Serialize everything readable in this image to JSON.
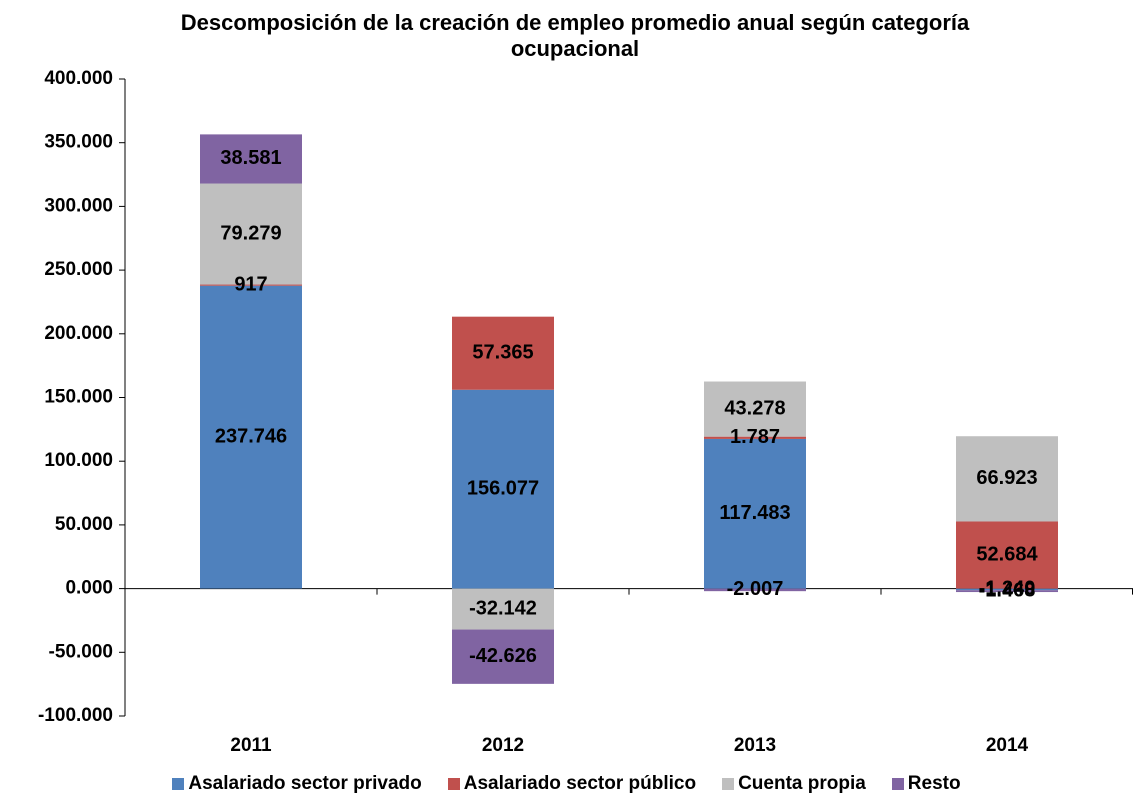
{
  "chart_data": {
    "type": "stacked_bar",
    "title": "Descomposición de la creación de empleo promedio anual según categoría ocupacional",
    "categories": [
      "2011",
      "2012",
      "2013",
      "2014"
    ],
    "series": [
      {
        "name": "Asalariado sector privado",
        "color": "#4f81bd",
        "values": [
          237746,
          156077,
          117483,
          -1240
        ],
        "value_labels": [
          "237.746",
          "156.077",
          "117.483",
          "-1.240"
        ]
      },
      {
        "name": "Asalariado sector público",
        "color": "#c0504d",
        "values": [
          917,
          57365,
          1787,
          52684
        ],
        "value_labels": [
          "917",
          "57.365",
          "1.787",
          "52.684"
        ]
      },
      {
        "name": "Cuenta propia",
        "color": "#bfbfbf",
        "values": [
          79279,
          -32142,
          43278,
          66923
        ],
        "value_labels": [
          "79.279",
          "-32.142",
          "43.278",
          "66.923"
        ]
      },
      {
        "name": "Resto",
        "color": "#8064a2",
        "values": [
          38581,
          -42626,
          -2007,
          -1468
        ],
        "value_labels": [
          "38.581",
          "-42.626",
          "-2.007",
          "-1.468"
        ]
      }
    ],
    "ylim": [
      -100000,
      400000
    ],
    "yticks": [
      {
        "value": -100000,
        "label": "-100.000"
      },
      {
        "value": -50000,
        "label": "-50.000"
      },
      {
        "value": 0,
        "label": "0.000"
      },
      {
        "value": 50000,
        "label": "50.000"
      },
      {
        "value": 100000,
        "label": "100.000"
      },
      {
        "value": 150000,
        "label": "150.000"
      },
      {
        "value": 200000,
        "label": "200.000"
      },
      {
        "value": 250000,
        "label": "250.000"
      },
      {
        "value": 300000,
        "label": "300.000"
      },
      {
        "value": 350000,
        "label": "350.000"
      },
      {
        "value": 400000,
        "label": "400.000"
      }
    ],
    "legend": "bottom"
  }
}
